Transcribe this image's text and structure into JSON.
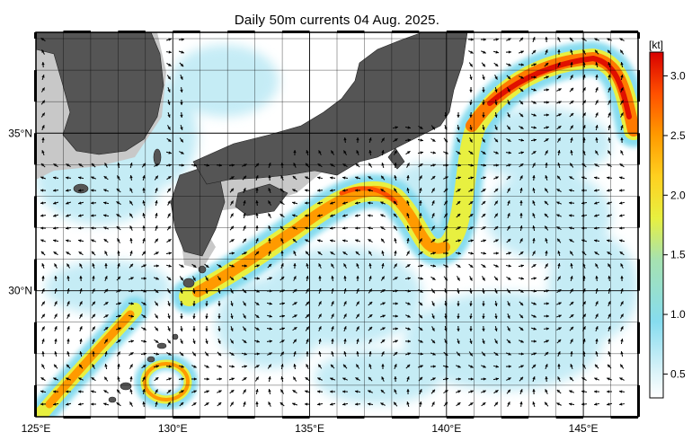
{
  "title": "Daily 50m currents 04 Aug. 2025.",
  "map": {
    "lon_range": [
      125,
      147
    ],
    "lat_range": [
      26,
      38.2
    ],
    "lon_ticks": [
      {
        "value": 125,
        "label": "125°E"
      },
      {
        "value": 130,
        "label": "130°E"
      },
      {
        "value": 135,
        "label": "135°E"
      },
      {
        "value": 140,
        "label": "140°E"
      },
      {
        "value": 145,
        "label": "145°E"
      }
    ],
    "lat_ticks": [
      {
        "value": 30,
        "label": "30°N"
      },
      {
        "value": 35,
        "label": "35°N"
      }
    ],
    "grid_lines": true,
    "land_color": "#555555",
    "shallow_color": "#c8c8c8",
    "ocean_color": "#ffffff",
    "arrow_color": "#000000"
  },
  "colorbar": {
    "unit_label": "[kt]",
    "min": 0.3,
    "max": 3.2,
    "ticks": [
      {
        "value": 0.5,
        "label": "0.5"
      },
      {
        "value": 1.0,
        "label": "1.0"
      },
      {
        "value": 1.5,
        "label": "1.5"
      },
      {
        "value": 2.0,
        "label": "2.0"
      },
      {
        "value": 2.5,
        "label": "2.5"
      },
      {
        "value": 3.0,
        "label": "3.0"
      }
    ],
    "colors": [
      "#ffffff",
      "#d8f2f8",
      "#7fd8ef",
      "#a8e0a0",
      "#f4f030",
      "#ffb000",
      "#ff6a00",
      "#e00000"
    ]
  }
}
